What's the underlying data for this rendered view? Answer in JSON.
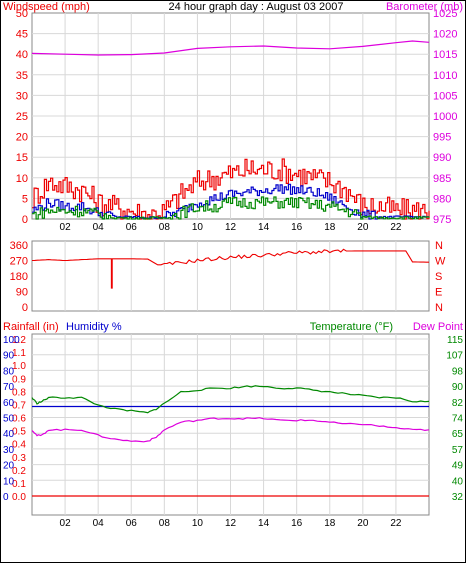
{
  "title": "24 hour graph day : August 03 2007",
  "colors": {
    "red": "#ee0000",
    "green": "#008800",
    "blue": "#0000cc",
    "magenta": "#dd00dd",
    "axis": "#000000",
    "frame": "#888888",
    "grid": "#d8d8d8"
  },
  "x_ticks": [
    "02",
    "04",
    "06",
    "08",
    "10",
    "12",
    "14",
    "16",
    "18",
    "20",
    "22"
  ],
  "chart_data": [
    {
      "type": "line",
      "name_panel": "wind-barometer",
      "left_label": "Windspeed (mph)",
      "right_label": "Barometer (mb)",
      "left_ticks": [
        "0",
        "5",
        "10",
        "15",
        "20",
        "25",
        "30",
        "35",
        "40",
        "45",
        "50"
      ],
      "right_ticks": [
        "975",
        "980",
        "985",
        "990",
        "995",
        "1000",
        "1005",
        "1010",
        "1015",
        "1020",
        "1025"
      ],
      "ylim_left": [
        0,
        50
      ],
      "ylim_right": [
        975,
        1025
      ],
      "x_range_hours": [
        0,
        24
      ],
      "series": [
        {
          "axis": "right",
          "color": "magenta",
          "hours": [
            0,
            2,
            4,
            6,
            8,
            10,
            12,
            14,
            16,
            18,
            20,
            22,
            23,
            24
          ],
          "values": [
            1015.2,
            1015.0,
            1014.8,
            1014.9,
            1015.3,
            1016.4,
            1016.8,
            1017.0,
            1016.5,
            1016.3,
            1016.9,
            1017.8,
            1018.2,
            1017.9
          ]
        },
        {
          "axis": "left",
          "color": "red",
          "hours": [
            0,
            1,
            2,
            3,
            4,
            5,
            6,
            7,
            8,
            9,
            10,
            11,
            12,
            13,
            14,
            15,
            16,
            17,
            18,
            19,
            20,
            21,
            22,
            23,
            24
          ],
          "values": [
            5,
            9,
            8,
            7,
            4,
            3,
            2,
            1,
            2,
            6,
            9,
            10,
            11,
            12,
            12,
            12,
            11,
            10,
            9,
            7,
            3,
            3,
            2,
            2,
            2
          ]
        },
        {
          "axis": "left",
          "color": "blue",
          "hours": [
            0,
            1,
            2,
            3,
            4,
            5,
            6,
            7,
            8,
            9,
            10,
            11,
            12,
            13,
            14,
            15,
            16,
            17,
            18,
            19,
            20,
            21,
            22,
            23,
            24
          ],
          "values": [
            2,
            4,
            3,
            3,
            1.5,
            0.5,
            0.5,
            0.3,
            0.5,
            2,
            4,
            5,
            6,
            6.5,
            7,
            7.5,
            7,
            6.5,
            5,
            3,
            1,
            0.5,
            0.5,
            0.5,
            0.5
          ]
        },
        {
          "axis": "left",
          "color": "green",
          "hours": [
            0,
            1,
            2,
            3,
            4,
            5,
            6,
            7,
            8,
            9,
            10,
            11,
            12,
            13,
            14,
            15,
            16,
            17,
            18,
            19,
            20,
            21,
            22,
            23,
            24
          ],
          "values": [
            1,
            2,
            2,
            2,
            1,
            0.3,
            0.2,
            0.2,
            0.3,
            1.5,
            3,
            3,
            4,
            4,
            4,
            4,
            4,
            3.5,
            3,
            2,
            0.5,
            0.3,
            0.3,
            0.3,
            0.3
          ]
        }
      ]
    },
    {
      "type": "line",
      "name_panel": "wind-direction",
      "left_ticks": [
        "0",
        "90",
        "180",
        "270",
        "360"
      ],
      "right_ticks": [
        "N",
        "E",
        "S",
        "W",
        "N"
      ],
      "ylim_left": [
        0,
        360
      ],
      "x_range_hours": [
        0,
        24
      ],
      "series": [
        {
          "axis": "left",
          "color": "red",
          "hours": [
            0,
            1,
            2,
            3,
            4,
            4.8,
            4.8,
            4.85,
            4.85,
            6,
            7,
            7.6,
            8,
            9,
            10,
            11,
            12,
            13,
            14,
            15,
            16,
            17,
            18,
            19,
            20,
            21,
            22,
            22.6,
            23,
            24
          ],
          "values": [
            270,
            275,
            270,
            275,
            280,
            280,
            110,
            110,
            280,
            280,
            278,
            245,
            245,
            258,
            270,
            280,
            288,
            295,
            300,
            310,
            315,
            318,
            322,
            325,
            326,
            326,
            326,
            326,
            262,
            260
          ]
        }
      ]
    },
    {
      "type": "line",
      "name_panel": "rain-humidity-temp",
      "left_label_rain": "Rainfall (in)",
      "left_label_humidity": "Humidity %",
      "right_label_temp": "Temperature (°F)",
      "right_label_dew": "Dew Point",
      "rain_ticks": [
        "0.0",
        "0.1",
        "0.2",
        "0.3",
        "0.4",
        "0.5",
        "0.6",
        "0.7",
        "0.8",
        "0.9",
        "1.0",
        "1.1",
        "1.2"
      ],
      "humidity_ticks": [
        "0",
        "10",
        "20",
        "30",
        "40",
        "50",
        "60",
        "70",
        "80",
        "90",
        "100"
      ],
      "temp_ticks": [
        "32",
        "40",
        "49",
        "57",
        "65",
        "74",
        "82",
        "90",
        "98",
        "107",
        "115"
      ],
      "ylim_rain": [
        0,
        1.2
      ],
      "ylim_temp": [
        32,
        115
      ],
      "x_range_hours": [
        0,
        24
      ],
      "series": [
        {
          "axis": "humidity",
          "color": "blue",
          "hours": [
            0,
            24
          ],
          "values": [
            57,
            57
          ]
        },
        {
          "axis": "rain",
          "color": "red",
          "hours": [
            0,
            24
          ],
          "values": [
            0,
            0
          ]
        },
        {
          "axis": "temp",
          "color": "green",
          "hours": [
            0,
            0.3,
            0.6,
            1,
            2,
            3,
            4,
            5,
            6,
            7,
            7.5,
            8,
            9,
            10,
            11,
            12,
            13,
            14,
            15,
            16,
            17,
            18,
            19,
            20,
            21,
            22,
            23,
            24
          ],
          "values": [
            84,
            81,
            82,
            84,
            84,
            84,
            80,
            78,
            77,
            76,
            78,
            81,
            87,
            88,
            89,
            89,
            90,
            90,
            89,
            89,
            88,
            87,
            86,
            85,
            84,
            84,
            82,
            82
          ]
        },
        {
          "axis": "temp",
          "color": "magenta",
          "hours": [
            0,
            0.3,
            0.6,
            1,
            2,
            3,
            4,
            5,
            6,
            7,
            7.5,
            8,
            9,
            10,
            11,
            12,
            13,
            14,
            15,
            16,
            17,
            18,
            19,
            20,
            21,
            22,
            23,
            24
          ],
          "values": [
            67,
            64,
            64,
            67,
            67,
            67,
            64,
            62,
            61,
            61,
            63,
            67,
            71,
            72,
            73,
            73,
            73,
            73,
            72,
            72,
            72,
            71,
            70,
            70,
            69,
            68,
            67,
            67
          ]
        }
      ]
    }
  ]
}
